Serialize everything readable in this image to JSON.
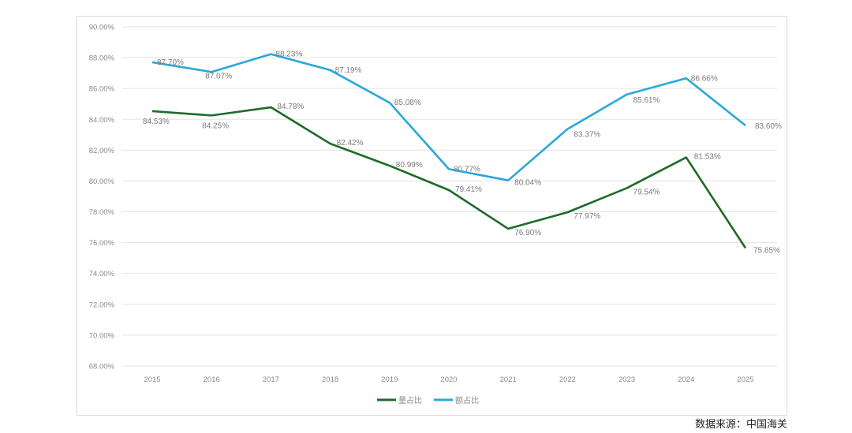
{
  "chart_data": {
    "type": "line",
    "title": "",
    "xlabel": "",
    "ylabel": "",
    "categories": [
      "2015",
      "2016",
      "2017",
      "2018",
      "2019",
      "2020",
      "2021",
      "2022",
      "2023",
      "2024",
      "2025"
    ],
    "ylim": [
      68,
      90
    ],
    "yticks": [
      68,
      70,
      72,
      74,
      76,
      78,
      80,
      82,
      84,
      86,
      88,
      90
    ],
    "ytick_labels": [
      "68.00%",
      "70.00%",
      "72.00%",
      "74.00%",
      "76.00%",
      "78.00%",
      "80.00%",
      "82.00%",
      "84.00%",
      "86.00%",
      "88.00%",
      "90.00%"
    ],
    "grid": true,
    "legend_position": "bottom",
    "series": [
      {
        "name": "量占比",
        "color": "#1e6b2a",
        "values": [
          84.53,
          84.25,
          84.78,
          82.42,
          80.99,
          79.41,
          76.9,
          77.97,
          79.54,
          81.53,
          75.65
        ],
        "labels": [
          "84.53%",
          "84.25%",
          "84.78%",
          "82.42%",
          "80.99%",
          "79.41%",
          "76.90%",
          "77.97%",
          "79.54%",
          "81.53%",
          "75.65%"
        ]
      },
      {
        "name": "额占比",
        "color": "#29a8d8",
        "values": [
          87.7,
          87.07,
          88.23,
          87.19,
          85.08,
          80.77,
          80.04,
          83.37,
          85.61,
          86.66,
          83.6
        ],
        "labels": [
          "87.70%",
          "87.07%",
          "88.23%",
          "87.19%",
          "85.08%",
          "80.77%",
          "80.04%",
          "83.37%",
          "85.61%",
          "86.66%",
          "83.60%"
        ]
      }
    ]
  },
  "source": "数据来源：中国海关"
}
